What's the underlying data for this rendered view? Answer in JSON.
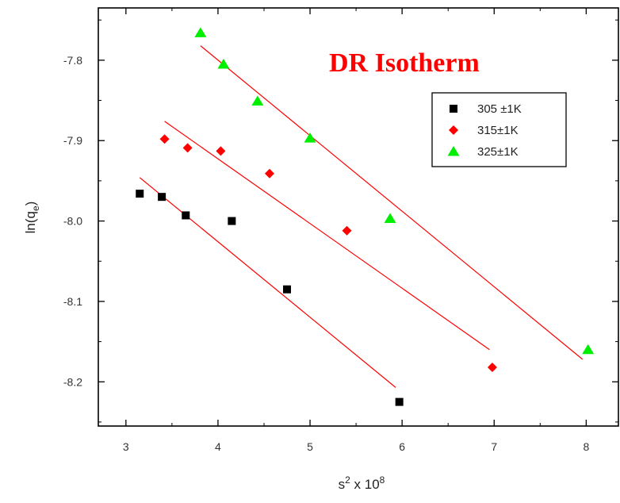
{
  "chart_data": {
    "type": "scatter",
    "title": "DR Isotherm",
    "title_color": "#ff0000",
    "xlabel": "s",
    "xlabel_sup1": "2",
    "xlabel_mid": " x 10",
    "xlabel_sup2": "8",
    "ylabel": "ln(q",
    "ylabel_sub": "e",
    "ylabel_end": ")",
    "xlim": [
      2.7,
      8.35
    ],
    "ylim": [
      -8.255,
      -7.735
    ],
    "xticks": [
      3,
      4,
      5,
      6,
      7,
      8
    ],
    "xtick_labels": [
      "3",
      "4",
      "5",
      "6",
      "7",
      "8"
    ],
    "yticks": [
      -7.8,
      -7.9,
      -8.0,
      -8.1,
      -8.2
    ],
    "ytick_labels": [
      "-7.8",
      "-7.9",
      "-8.0",
      "-8.1",
      "-8.2"
    ],
    "fit_color": "#ff0000",
    "legend_position": "top-right",
    "series": [
      {
        "name": "305 ±1K",
        "marker": "square",
        "color": "#000000",
        "x": [
          3.15,
          3.39,
          3.65,
          4.15,
          4.75,
          5.97
        ],
        "y": [
          -7.966,
          -7.97,
          -7.993,
          -8.0,
          -8.085,
          -8.225
        ],
        "fit": [
          [
            3.15,
            -7.946
          ],
          [
            5.93,
            -8.207
          ]
        ]
      },
      {
        "name": "315±1K",
        "marker": "diamond",
        "color": "#ff0000",
        "x": [
          3.42,
          3.67,
          4.03,
          4.56,
          5.4,
          6.98
        ],
        "y": [
          -7.898,
          -7.909,
          -7.913,
          -7.941,
          -8.012,
          -8.182
        ],
        "fit": [
          [
            3.42,
            -7.876
          ],
          [
            6.95,
            -8.16
          ]
        ]
      },
      {
        "name": "325±1K",
        "marker": "triangle",
        "color": "#00ee00",
        "x": [
          3.81,
          4.06,
          4.43,
          5.0,
          5.87,
          8.02
        ],
        "y": [
          -7.766,
          -7.805,
          -7.851,
          -7.897,
          -7.997,
          -8.16
        ],
        "fit": [
          [
            3.81,
            -7.782
          ],
          [
            7.96,
            -8.172
          ]
        ]
      }
    ]
  }
}
